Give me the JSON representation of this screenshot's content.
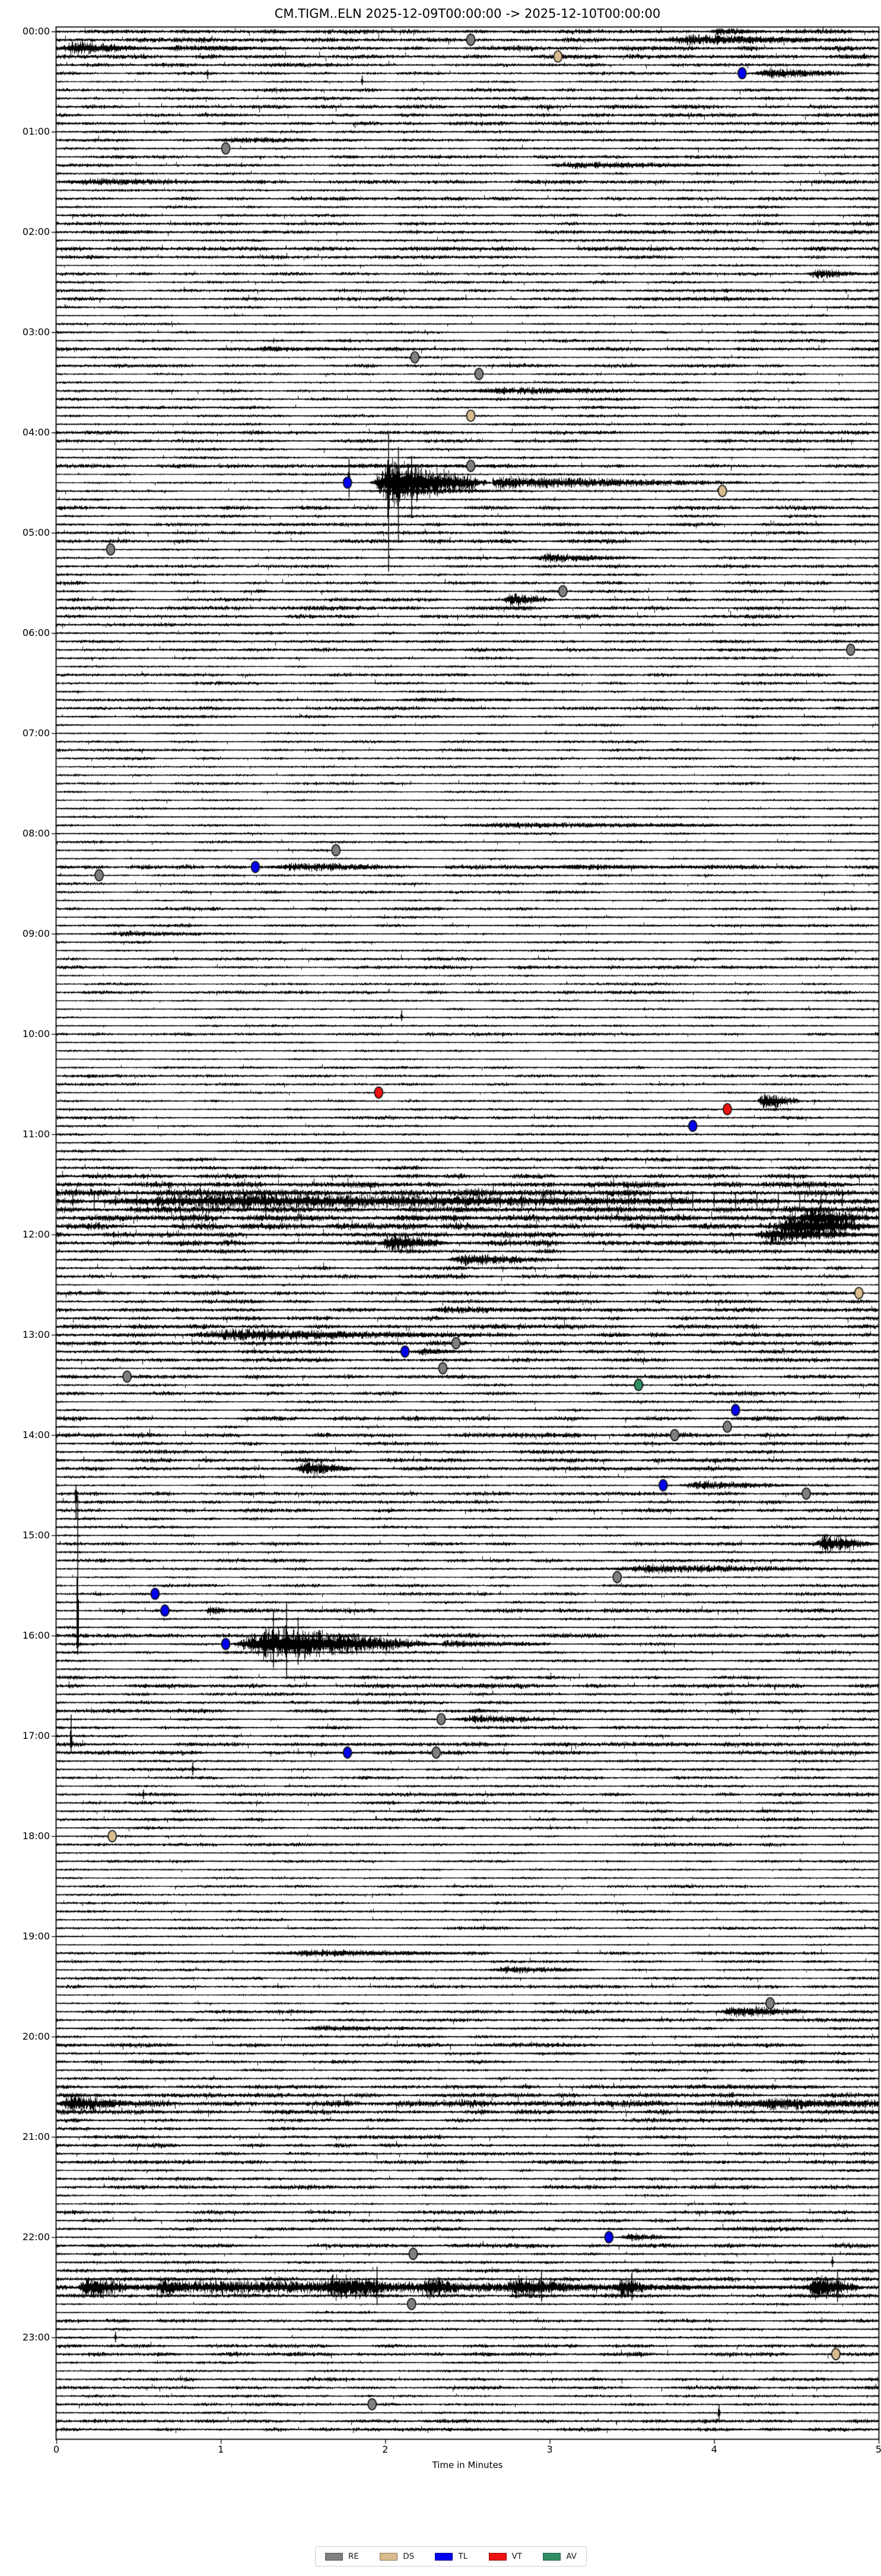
{
  "chart_data": {
    "type": "helicorder",
    "title": "CM.TIGM..ELN  2025-12-09T00:00:00 -> 2025-12-10T00:00:00",
    "xlabel": "Time in Minutes",
    "x_range": [
      0,
      5
    ],
    "x_ticks": [
      "0",
      "1",
      "2",
      "3",
      "4",
      "5"
    ],
    "minutes_per_line": 5,
    "lines_per_hour": 12,
    "total_lines": 288,
    "hour_labels": [
      "00:00",
      "01:00",
      "02:00",
      "03:00",
      "04:00",
      "05:00",
      "06:00",
      "07:00",
      "08:00",
      "09:00",
      "10:00",
      "11:00",
      "12:00",
      "13:00",
      "14:00",
      "15:00",
      "16:00",
      "17:00",
      "18:00",
      "19:00",
      "20:00",
      "21:00",
      "22:00",
      "23:00"
    ],
    "legend": [
      {
        "code": "RE",
        "color": "#7f7f7f"
      },
      {
        "code": "DS",
        "color": "#d8bc8e"
      },
      {
        "code": "TL",
        "color": "#0000ee"
      },
      {
        "code": "VT",
        "color": "#ee1111"
      },
      {
        "code": "AV",
        "color": "#2e8f62"
      }
    ],
    "trace_color": "#000000",
    "markers": [
      {
        "time": "00:05",
        "line": 1,
        "minute": 2.52,
        "type": "RE"
      },
      {
        "time": "00:15",
        "line": 3,
        "minute": 3.05,
        "type": "DS"
      },
      {
        "time": "00:25",
        "line": 5,
        "minute": 4.17,
        "type": "TL"
      },
      {
        "time": "01:10",
        "line": 14,
        "minute": 1.03,
        "type": "RE"
      },
      {
        "time": "03:15",
        "line": 39,
        "minute": 2.18,
        "type": "RE"
      },
      {
        "time": "03:25",
        "line": 41,
        "minute": 2.57,
        "type": "RE"
      },
      {
        "time": "03:50",
        "line": 46,
        "minute": 2.52,
        "type": "DS"
      },
      {
        "time": "04:20",
        "line": 52,
        "minute": 2.52,
        "type": "RE"
      },
      {
        "time": "04:30",
        "line": 54,
        "minute": 1.77,
        "type": "TL"
      },
      {
        "time": "04:35",
        "line": 55,
        "minute": 4.05,
        "type": "DS"
      },
      {
        "time": "05:10",
        "line": 62,
        "minute": 0.33,
        "type": "RE"
      },
      {
        "time": "05:35",
        "line": 67,
        "minute": 3.08,
        "type": "RE"
      },
      {
        "time": "06:10",
        "line": 74,
        "minute": 4.83,
        "type": "RE"
      },
      {
        "time": "08:10",
        "line": 98,
        "minute": 1.7,
        "type": "RE"
      },
      {
        "time": "08:20",
        "line": 100,
        "minute": 1.21,
        "type": "TL"
      },
      {
        "time": "08:25",
        "line": 101,
        "minute": 0.26,
        "type": "RE"
      },
      {
        "time": "10:35",
        "line": 127,
        "minute": 1.96,
        "type": "VT"
      },
      {
        "time": "10:45",
        "line": 129,
        "minute": 4.08,
        "type": "VT"
      },
      {
        "time": "10:55",
        "line": 131,
        "minute": 3.87,
        "type": "TL"
      },
      {
        "time": "12:35",
        "line": 151,
        "minute": 4.88,
        "type": "DS"
      },
      {
        "time": "13:05",
        "line": 157,
        "minute": 2.43,
        "type": "RE"
      },
      {
        "time": "13:10",
        "line": 158,
        "minute": 2.12,
        "type": "TL"
      },
      {
        "time": "13:20",
        "line": 160,
        "minute": 2.35,
        "type": "RE"
      },
      {
        "time": "13:25",
        "line": 161,
        "minute": 0.43,
        "type": "RE"
      },
      {
        "time": "13:30",
        "line": 162,
        "minute": 3.54,
        "type": "AV"
      },
      {
        "time": "13:45",
        "line": 165,
        "minute": 4.13,
        "type": "TL"
      },
      {
        "time": "13:55",
        "line": 167,
        "minute": 4.08,
        "type": "RE"
      },
      {
        "time": "14:00",
        "line": 168,
        "minute": 3.76,
        "type": "RE"
      },
      {
        "time": "14:30",
        "line": 174,
        "minute": 3.69,
        "type": "TL"
      },
      {
        "time": "14:35",
        "line": 175,
        "minute": 4.56,
        "type": "RE"
      },
      {
        "time": "15:25",
        "line": 185,
        "minute": 3.41,
        "type": "RE"
      },
      {
        "time": "15:35",
        "line": 187,
        "minute": 0.6,
        "type": "TL"
      },
      {
        "time": "15:45",
        "line": 189,
        "minute": 0.66,
        "type": "TL"
      },
      {
        "time": "16:05",
        "line": 193,
        "minute": 1.03,
        "type": "TL"
      },
      {
        "time": "16:50",
        "line": 202,
        "minute": 2.34,
        "type": "RE"
      },
      {
        "time": "17:10",
        "line": 206,
        "minute": 1.77,
        "type": "TL"
      },
      {
        "time": "17:10",
        "line": 206,
        "minute": 2.31,
        "type": "RE"
      },
      {
        "time": "18:00",
        "line": 216,
        "minute": 0.34,
        "type": "DS"
      },
      {
        "time": "19:40",
        "line": 236,
        "minute": 4.34,
        "type": "RE"
      },
      {
        "time": "22:00",
        "line": 264,
        "minute": 3.36,
        "type": "TL"
      },
      {
        "time": "22:10",
        "line": 266,
        "minute": 2.17,
        "type": "RE"
      },
      {
        "time": "22:40",
        "line": 272,
        "minute": 2.16,
        "type": "RE"
      },
      {
        "time": "23:10",
        "line": 278,
        "minute": 4.74,
        "type": "DS"
      },
      {
        "time": "23:40",
        "line": 284,
        "minute": 1.92,
        "type": "RE"
      }
    ],
    "bursts": [
      {
        "line": 0,
        "t0": 3.95,
        "t1": 4.35,
        "amp": 5
      },
      {
        "line": 1,
        "t0": 3.6,
        "t1": 5.0,
        "amp": 7
      },
      {
        "line": 2,
        "t0": 0.0,
        "t1": 0.55,
        "amp": 9
      },
      {
        "line": 2,
        "t0": 0.55,
        "t1": 1.6,
        "amp": 4
      },
      {
        "line": 5,
        "t0": 4.2,
        "t1": 4.95,
        "amp": 7
      },
      {
        "line": 13,
        "t0": 0.85,
        "t1": 2.1,
        "amp": 4
      },
      {
        "line": 16,
        "t0": 2.9,
        "t1": 4.3,
        "amp": 5
      },
      {
        "line": 18,
        "t0": 0.0,
        "t1": 1.3,
        "amp": 5
      },
      {
        "line": 29,
        "t0": 4.55,
        "t1": 4.95,
        "amp": 7
      },
      {
        "line": 38,
        "t0": 1.15,
        "t1": 1.85,
        "amp": 4
      },
      {
        "line": 43,
        "t0": 2.4,
        "t1": 4.1,
        "amp": 5
      },
      {
        "line": 52,
        "t0": 1.5,
        "t1": 3.5,
        "amp": 3
      },
      {
        "line": 54,
        "t0": 1.9,
        "t1": 2.65,
        "amp": 28
      },
      {
        "line": 54,
        "t0": 2.65,
        "t1": 4.2,
        "amp": 8,
        "amp1": 2
      },
      {
        "line": 55,
        "t0": 1.9,
        "t1": 2.9,
        "amp": 5
      },
      {
        "line": 63,
        "t0": 2.85,
        "t1": 3.65,
        "amp": 6
      },
      {
        "line": 68,
        "t0": 2.7,
        "t1": 3.05,
        "amp": 9
      },
      {
        "line": 80,
        "t0": 2.0,
        "t1": 3.3,
        "amp": 3
      },
      {
        "line": 95,
        "t0": 2.3,
        "t1": 4.9,
        "amp": 4
      },
      {
        "line": 100,
        "t0": 1.25,
        "t1": 2.35,
        "amp": 6
      },
      {
        "line": 100,
        "t0": 2.9,
        "t1": 4.3,
        "amp": 4
      },
      {
        "line": 108,
        "t0": 0.2,
        "t1": 1.4,
        "amp": 4
      },
      {
        "line": 128,
        "t0": 4.25,
        "t1": 4.55,
        "amp": 10
      },
      {
        "line": 140,
        "t0": 0.1,
        "t1": 4.9,
        "amp": 10,
        "period": 0.13
      },
      {
        "line": 142,
        "t0": 4.5,
        "t1": 5.0,
        "amp": 14
      },
      {
        "line": 143,
        "t0": 4.35,
        "t1": 5.0,
        "amp": 18
      },
      {
        "line": 144,
        "t0": 4.2,
        "t1": 5.0,
        "amp": 10
      },
      {
        "line": 145,
        "t0": 1.95,
        "t1": 2.4,
        "amp": 13
      },
      {
        "line": 147,
        "t0": 2.35,
        "t1": 3.15,
        "amp": 8
      },
      {
        "line": 153,
        "t0": 2.2,
        "t1": 3.2,
        "amp": 5
      },
      {
        "line": 156,
        "t0": 0.7,
        "t1": 2.75,
        "amp": 8
      },
      {
        "line": 158,
        "t0": 2.15,
        "t1": 2.6,
        "amp": 5
      },
      {
        "line": 172,
        "t0": 1.45,
        "t1": 1.8,
        "amp": 12
      },
      {
        "line": 174,
        "t0": 3.75,
        "t1": 4.6,
        "amp": 6
      },
      {
        "line": 181,
        "t0": 4.6,
        "t1": 5.0,
        "amp": 12
      },
      {
        "line": 184,
        "t0": 3.3,
        "t1": 5.0,
        "amp": 6
      },
      {
        "line": 189,
        "t0": 0.9,
        "t1": 1.05,
        "amp": 8
      },
      {
        "line": 193,
        "t0": 1.05,
        "t1": 2.35,
        "amp": 22
      },
      {
        "line": 193,
        "t0": 2.35,
        "t1": 3.0,
        "amp": 5,
        "amp1": 2
      },
      {
        "line": 202,
        "t0": 2.4,
        "t1": 3.2,
        "amp": 6
      },
      {
        "line": 230,
        "t0": 1.3,
        "t1": 2.6,
        "amp": 5
      },
      {
        "line": 232,
        "t0": 2.6,
        "t1": 3.4,
        "amp": 5
      },
      {
        "line": 237,
        "t0": 4.0,
        "t1": 4.7,
        "amp": 8
      },
      {
        "line": 239,
        "t0": 1.4,
        "t1": 2.6,
        "amp": 4
      },
      {
        "line": 248,
        "t0": 0.0,
        "t1": 0.5,
        "amp": 12
      },
      {
        "line": 248,
        "t0": 4.2,
        "t1": 5.0,
        "amp": 9
      },
      {
        "line": 264,
        "t0": 3.4,
        "t1": 3.9,
        "amp": 5
      },
      {
        "line": 270,
        "t0": 0.05,
        "t1": 4.95,
        "amp": 9
      },
      {
        "line": 270,
        "t0": 0.12,
        "t1": 0.5,
        "amp": 16
      },
      {
        "line": 270,
        "t0": 0.6,
        "t1": 0.85,
        "amp": 13
      },
      {
        "line": 270,
        "t0": 1.6,
        "t1": 2.12,
        "amp": 18
      },
      {
        "line": 270,
        "t0": 2.2,
        "t1": 2.5,
        "amp": 15
      },
      {
        "line": 270,
        "t0": 2.7,
        "t1": 3.25,
        "amp": 14
      },
      {
        "line": 270,
        "t0": 3.4,
        "t1": 3.62,
        "amp": 15
      },
      {
        "line": 270,
        "t0": 4.55,
        "t1": 4.92,
        "amp": 17
      }
    ],
    "spikes": [
      {
        "line": 5,
        "t": 0.92,
        "up": 6,
        "down": 10
      },
      {
        "line": 6,
        "t": 1.86,
        "up": 10,
        "down": 6
      },
      {
        "line": 54,
        "t": 1.78,
        "up": 40,
        "down": 25
      },
      {
        "line": 54,
        "t": 2.02,
        "up": 85,
        "down": 150
      },
      {
        "line": 54,
        "t": 2.08,
        "up": 60,
        "down": 100
      },
      {
        "line": 54,
        "t": 2.16,
        "up": 45,
        "down": 60
      },
      {
        "line": 118,
        "t": 2.1,
        "up": 12,
        "down": 6
      },
      {
        "line": 175,
        "t": 0.12,
        "up": 15,
        "down": 42
      },
      {
        "line": 193,
        "t": 0.13,
        "up": 250,
        "down": 18
      },
      {
        "line": 193,
        "t": 1.32,
        "up": 55,
        "down": 40
      },
      {
        "line": 193,
        "t": 1.4,
        "up": 70,
        "down": 55
      },
      {
        "line": 193,
        "t": 1.47,
        "up": 45,
        "down": 35
      },
      {
        "line": 205,
        "t": 0.09,
        "up": 50,
        "down": 15
      },
      {
        "line": 208,
        "t": 0.83,
        "up": 12,
        "down": 10
      },
      {
        "line": 211,
        "t": 0.53,
        "up": 8,
        "down": 8
      },
      {
        "line": 267,
        "t": 4.72,
        "up": 10,
        "down": 8
      },
      {
        "line": 270,
        "t": 1.95,
        "up": 35,
        "down": 30
      },
      {
        "line": 270,
        "t": 2.95,
        "up": 28,
        "down": 24
      },
      {
        "line": 270,
        "t": 3.5,
        "up": 25,
        "down": 22
      },
      {
        "line": 270,
        "t": 4.75,
        "up": 30,
        "down": 25
      },
      {
        "line": 276,
        "t": 0.36,
        "up": 10,
        "down": 8
      },
      {
        "line": 285,
        "t": 4.03,
        "up": 14,
        "down": 16
      }
    ],
    "row_amp": {
      "1": 1.6,
      "2": 1.7,
      "137": 1.7,
      "138": 2.1,
      "139": 2.5,
      "140": 2.2,
      "141": 2.6,
      "142": 2.3,
      "143": 2.5,
      "144": 2.0,
      "145": 1.9,
      "146": 1.6,
      "155": 1.7,
      "156": 1.8,
      "157": 1.6,
      "159": 1.5,
      "163": 1.5,
      "166": 1.6,
      "168": 1.7,
      "246": 1.5,
      "247": 1.6,
      "248": 2.4,
      "249": 1.7,
      "269": 1.5,
      "270": 2.2,
      "271": 1.5
    },
    "quiet_ranges": [
      [
        76,
        83,
        0.8
      ],
      [
        84,
        99,
        0.7
      ],
      [
        102,
        126,
        0.8
      ],
      [
        216,
        236,
        0.8
      ]
    ],
    "noise_seed": 42,
    "grid": false,
    "legend_position": "bottom-center"
  }
}
